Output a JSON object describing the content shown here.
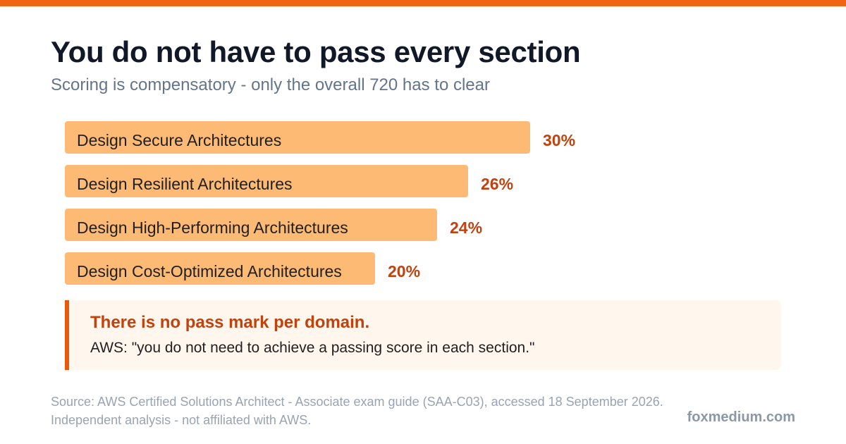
{
  "colors": {
    "accent": "#ef6514",
    "bar": "#fdba74",
    "value_text": "#c2410c",
    "callout_bg": "#fff6ee",
    "callout_border": "#ea580c"
  },
  "header": {
    "title": "You do not have to pass every section",
    "subtitle": "Scoring is compensatory - only the overall 720 has to clear"
  },
  "chart_data": {
    "type": "bar",
    "orientation": "horizontal",
    "categories": [
      "Design Secure Architectures",
      "Design Resilient Architectures",
      "Design High-Performing Architectures",
      "Design Cost-Optimized Architectures"
    ],
    "values": [
      30,
      26,
      24,
      20
    ],
    "value_labels": [
      "30%",
      "26%",
      "24%",
      "20%"
    ],
    "unit": "%",
    "title": "You do not have to pass every section",
    "subtitle": "Scoring is compensatory - only the overall 720 has to clear",
    "grid": false,
    "legend": "none"
  },
  "callout": {
    "title": "There is no pass mark per domain.",
    "body": "AWS: \"you do not need to achieve a passing score in each section.\""
  },
  "footer": {
    "source_line1": "Source: AWS Certified Solutions Architect - Associate exam guide (SAA-C03), accessed 18 September 2026.",
    "source_line2": "Independent analysis - not affiliated with AWS.",
    "brand": "foxmedium.com"
  }
}
